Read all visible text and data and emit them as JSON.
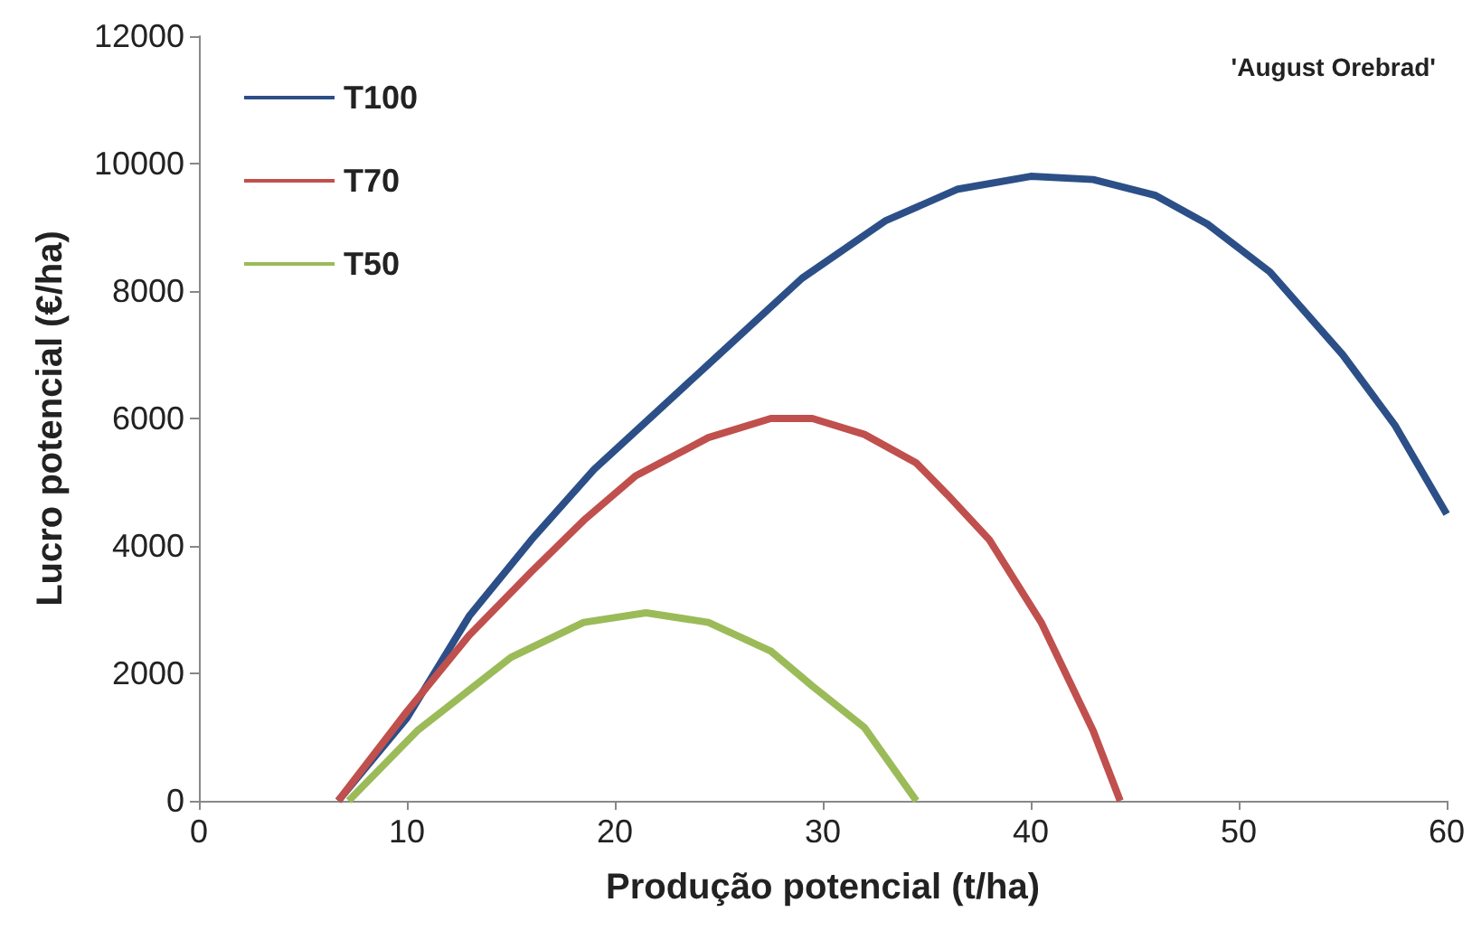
{
  "chart_data": {
    "type": "line",
    "xlabel": "Produção potencial (t/ha)",
    "ylabel": "Lucro potencial (€/ha)",
    "annotations": [
      "'August Orebrad'"
    ],
    "xlim": [
      0,
      60
    ],
    "xticks": [
      0,
      10,
      20,
      30,
      40,
      50,
      60
    ],
    "ylim": [
      0,
      12000
    ],
    "yticks": [
      0,
      2000,
      4000,
      6000,
      8000,
      10000,
      12000
    ],
    "grid": false,
    "legend": "top left",
    "marker": "none",
    "line_style": "solid",
    "series": [
      {
        "name": "T100",
        "color": "#2c4f88",
        "x": [
          6.7,
          10,
          13,
          16,
          19,
          22,
          25,
          29,
          33,
          36.5,
          40,
          43,
          46,
          48.5,
          51.5,
          55,
          57.5,
          60
        ],
        "values": [
          0,
          1300,
          2900,
          4100,
          5200,
          6100,
          7000,
          8200,
          9100,
          9600,
          9800,
          9750,
          9500,
          9050,
          8300,
          7000,
          5900,
          4500
        ]
      },
      {
        "name": "T70",
        "color": "#c0504d",
        "x": [
          6.7,
          10,
          13,
          16,
          18.5,
          21,
          24.5,
          27.5,
          29.5,
          32,
          34.5,
          36,
          38,
          40.5,
          43,
          44.3
        ],
        "values": [
          0,
          1400,
          2600,
          3600,
          4400,
          5100,
          5700,
          6000,
          6000,
          5750,
          5300,
          4800,
          4100,
          2800,
          1100,
          0
        ]
      },
      {
        "name": "T50",
        "color": "#9bbb59",
        "x": [
          7.2,
          10.5,
          15,
          18.5,
          21.5,
          24.5,
          27.5,
          29.5,
          32,
          34.5
        ],
        "values": [
          0,
          1100,
          2250,
          2800,
          2950,
          2800,
          2350,
          1800,
          1150,
          0
        ]
      }
    ]
  }
}
